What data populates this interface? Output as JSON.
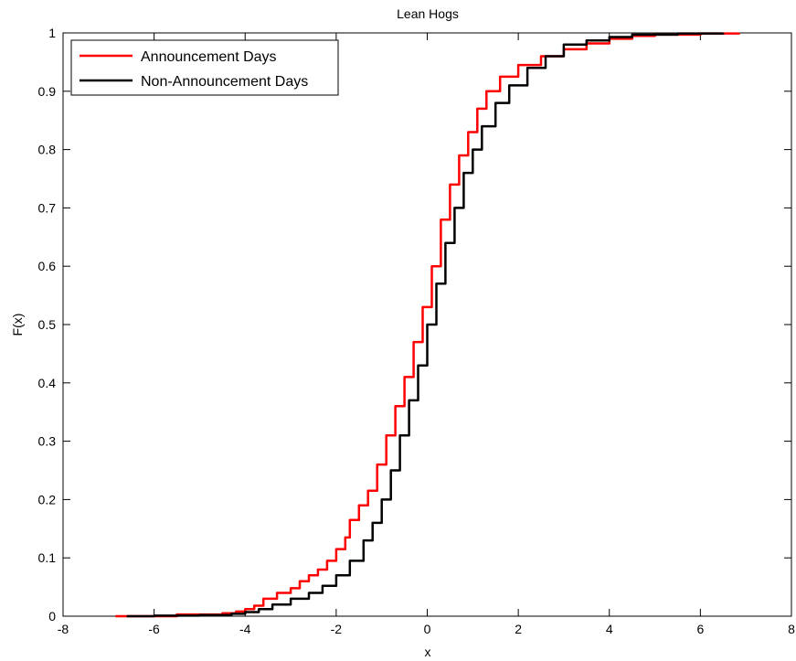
{
  "chart_data": {
    "type": "line",
    "title": "Lean Hogs",
    "xlabel": "x",
    "ylabel": "F(x)",
    "xlim": [
      -8,
      8
    ],
    "ylim": [
      0,
      1
    ],
    "xticks": [
      "-8",
      "-6",
      "-4",
      "-2",
      "0",
      "2",
      "4",
      "6",
      "8"
    ],
    "yticks": [
      "0",
      "0.1",
      "0.2",
      "0.3",
      "0.4",
      "0.5",
      "0.6",
      "0.7",
      "0.8",
      "0.9",
      "1"
    ],
    "grid": false,
    "legend_position": "top-left",
    "series": [
      {
        "name": "Announcement Days",
        "color": "#ff0000",
        "points": [
          [
            -6.85,
            0.0
          ],
          [
            -5.5,
            0.003
          ],
          [
            -4.5,
            0.005
          ],
          [
            -4.2,
            0.008
          ],
          [
            -4.0,
            0.012
          ],
          [
            -3.8,
            0.018
          ],
          [
            -3.6,
            0.03
          ],
          [
            -3.3,
            0.04
          ],
          [
            -3.0,
            0.048
          ],
          [
            -2.8,
            0.06
          ],
          [
            -2.6,
            0.07
          ],
          [
            -2.4,
            0.08
          ],
          [
            -2.2,
            0.095
          ],
          [
            -2.0,
            0.115
          ],
          [
            -1.8,
            0.135
          ],
          [
            -1.7,
            0.165
          ],
          [
            -1.5,
            0.19
          ],
          [
            -1.3,
            0.215
          ],
          [
            -1.1,
            0.26
          ],
          [
            -0.9,
            0.31
          ],
          [
            -0.7,
            0.36
          ],
          [
            -0.5,
            0.41
          ],
          [
            -0.3,
            0.47
          ],
          [
            -0.1,
            0.53
          ],
          [
            0.1,
            0.6
          ],
          [
            0.3,
            0.68
          ],
          [
            0.5,
            0.74
          ],
          [
            0.7,
            0.79
          ],
          [
            0.9,
            0.83
          ],
          [
            1.1,
            0.87
          ],
          [
            1.3,
            0.9
          ],
          [
            1.6,
            0.925
          ],
          [
            2.0,
            0.945
          ],
          [
            2.5,
            0.96
          ],
          [
            3.0,
            0.972
          ],
          [
            3.5,
            0.982
          ],
          [
            4.0,
            0.99
          ],
          [
            4.5,
            0.995
          ],
          [
            5.0,
            0.997
          ],
          [
            6.0,
            0.999
          ],
          [
            6.85,
            1.0
          ]
        ]
      },
      {
        "name": "Non-Announcement Days",
        "color": "#000000",
        "points": [
          [
            -6.6,
            0.0
          ],
          [
            -6.0,
            0.001
          ],
          [
            -5.0,
            0.002
          ],
          [
            -4.3,
            0.004
          ],
          [
            -4.0,
            0.007
          ],
          [
            -3.7,
            0.012
          ],
          [
            -3.4,
            0.02
          ],
          [
            -3.0,
            0.03
          ],
          [
            -2.6,
            0.04
          ],
          [
            -2.3,
            0.052
          ],
          [
            -2.0,
            0.07
          ],
          [
            -1.7,
            0.095
          ],
          [
            -1.4,
            0.13
          ],
          [
            -1.2,
            0.16
          ],
          [
            -1.0,
            0.2
          ],
          [
            -0.8,
            0.25
          ],
          [
            -0.6,
            0.31
          ],
          [
            -0.4,
            0.37
          ],
          [
            -0.2,
            0.43
          ],
          [
            0.0,
            0.5
          ],
          [
            0.2,
            0.57
          ],
          [
            0.4,
            0.64
          ],
          [
            0.6,
            0.7
          ],
          [
            0.8,
            0.76
          ],
          [
            1.0,
            0.8
          ],
          [
            1.2,
            0.84
          ],
          [
            1.5,
            0.88
          ],
          [
            1.8,
            0.91
          ],
          [
            2.2,
            0.94
          ],
          [
            2.6,
            0.96
          ],
          [
            3.0,
            0.98
          ],
          [
            3.5,
            0.987
          ],
          [
            4.0,
            0.993
          ],
          [
            4.5,
            0.997
          ],
          [
            5.5,
            0.999
          ],
          [
            6.5,
            1.0
          ]
        ]
      }
    ]
  }
}
